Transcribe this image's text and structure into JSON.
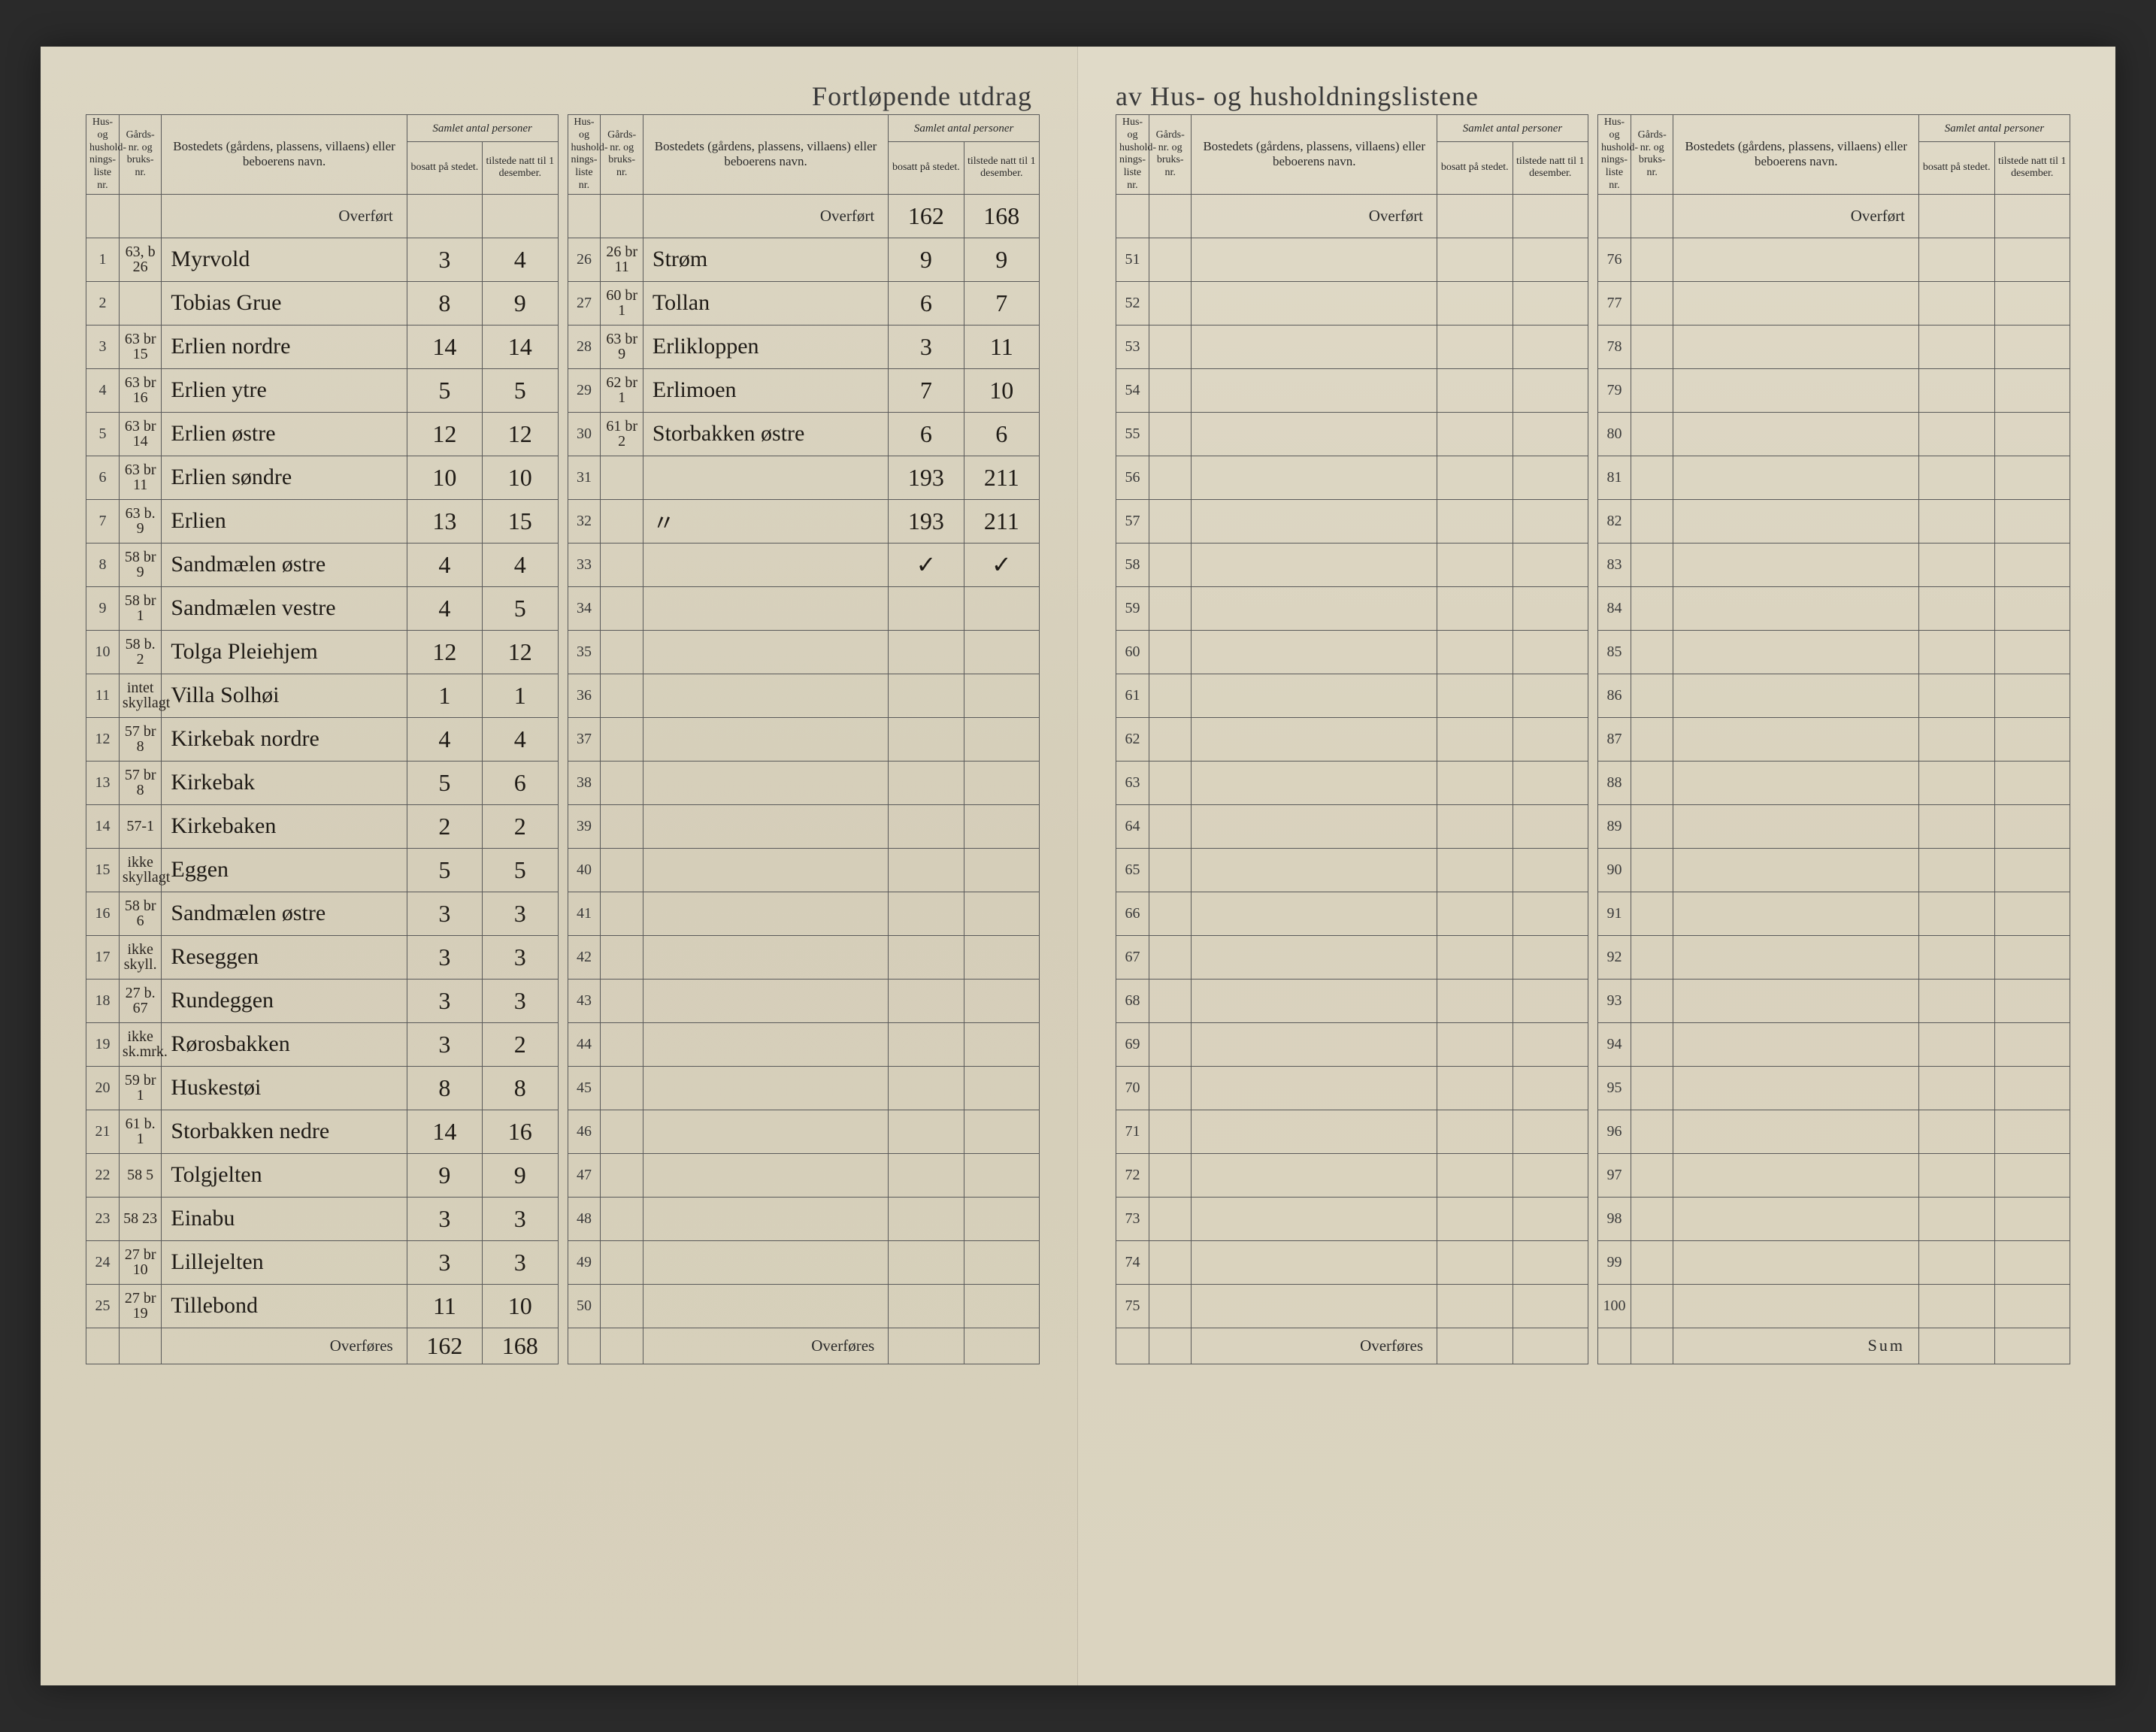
{
  "title_left": "Fortløpende utdrag",
  "title_right": "av Hus- og husholdningslistene",
  "headers": {
    "liste": "Hus- og hushold-nings-liste nr.",
    "gard": "Gårds-nr. og bruks-nr.",
    "navn": "Bostedets (gårdens, plassens, villaens) eller beboerens navn.",
    "group": "Samlet antal personer",
    "bosatt": "bosatt på stedet.",
    "tilstede": "tilstede natt til 1 desember."
  },
  "overfort": "Overført",
  "overfores": "Overføres",
  "sum": "Sum",
  "panels": {
    "p1": {
      "carry_in": {
        "b": "",
        "t": ""
      },
      "rows": [
        {
          "n": "1",
          "g": "63, b 26",
          "navn": "Myrvold",
          "b": "3",
          "t": "4"
        },
        {
          "n": "2",
          "g": "",
          "navn": "Tobias Grue",
          "b": "8",
          "t": "9"
        },
        {
          "n": "3",
          "g": "63 br 15",
          "navn": "Erlien nordre",
          "b": "14",
          "t": "14"
        },
        {
          "n": "4",
          "g": "63 br 16",
          "navn": "Erlien ytre",
          "b": "5",
          "t": "5"
        },
        {
          "n": "5",
          "g": "63 br 14",
          "navn": "Erlien østre",
          "b": "12",
          "t": "12"
        },
        {
          "n": "6",
          "g": "63 br 11",
          "navn": "Erlien søndre",
          "b": "10",
          "t": "10"
        },
        {
          "n": "7",
          "g": "63 b. 9",
          "navn": "Erlien",
          "b": "13",
          "t": "15"
        },
        {
          "n": "8",
          "g": "58 br 9",
          "navn": "Sandmælen østre",
          "b": "4",
          "t": "4"
        },
        {
          "n": "9",
          "g": "58 br 1",
          "navn": "Sandmælen vestre",
          "b": "4",
          "t": "5"
        },
        {
          "n": "10",
          "g": "58 b. 2",
          "navn": "Tolga Pleiehjem",
          "b": "12",
          "t": "12"
        },
        {
          "n": "11",
          "g": "intet skyllagt",
          "navn": "Villa Solhøi",
          "b": "1",
          "t": "1"
        },
        {
          "n": "12",
          "g": "57 br 8",
          "navn": "Kirkebak nordre",
          "b": "4",
          "t": "4"
        },
        {
          "n": "13",
          "g": "57 br 8",
          "navn": "Kirkebak",
          "b": "5",
          "t": "6"
        },
        {
          "n": "14",
          "g": "57-1",
          "navn": "Kirkebaken",
          "b": "2",
          "t": "2"
        },
        {
          "n": "15",
          "g": "ikke skyllagt",
          "navn": "Eggen",
          "b": "5",
          "t": "5"
        },
        {
          "n": "16",
          "g": "58 br 6",
          "navn": "Sandmælen østre",
          "b": "3",
          "t": "3"
        },
        {
          "n": "17",
          "g": "ikke skyll.",
          "navn": "Reseggen",
          "b": "3",
          "t": "3"
        },
        {
          "n": "18",
          "g": "27 b. 67",
          "navn": "Rundeggen",
          "b": "3",
          "t": "3"
        },
        {
          "n": "19",
          "g": "ikke sk.mrk.",
          "navn": "Rørosbakken",
          "b": "3",
          "t": "2"
        },
        {
          "n": "20",
          "g": "59 br 1",
          "navn": "Huskestøi",
          "b": "8",
          "t": "8"
        },
        {
          "n": "21",
          "g": "61 b. 1",
          "navn": "Storbakken nedre",
          "b": "14",
          "t": "16"
        },
        {
          "n": "22",
          "g": "58 5",
          "navn": "Tolgjelten",
          "b": "9",
          "t": "9"
        },
        {
          "n": "23",
          "g": "58 23",
          "navn": "Einabu",
          "b": "3",
          "t": "3"
        },
        {
          "n": "24",
          "g": "27 br 10",
          "navn": "Lillejelten",
          "b": "3",
          "t": "3"
        },
        {
          "n": "25",
          "g": "27 br 19",
          "navn": "Tillebond",
          "b": "11",
          "t": "10"
        }
      ],
      "carry_out": {
        "b": "162",
        "t": "168"
      }
    },
    "p2": {
      "carry_in": {
        "b": "162",
        "t": "168"
      },
      "rows": [
        {
          "n": "26",
          "g": "26 br 11",
          "navn": "Strøm",
          "b": "9",
          "t": "9"
        },
        {
          "n": "27",
          "g": "60 br 1",
          "navn": "Tollan",
          "b": "6",
          "t": "7"
        },
        {
          "n": "28",
          "g": "63 br 9",
          "navn": "Erlikloppen",
          "b": "3",
          "t": "11"
        },
        {
          "n": "29",
          "g": "62 br 1",
          "navn": "Erlimoen",
          "b": "7",
          "t": "10"
        },
        {
          "n": "30",
          "g": "61 br 2",
          "navn": "Storbakken østre",
          "b": "6",
          "t": "6"
        },
        {
          "n": "31",
          "g": "",
          "navn": "",
          "b": "193",
          "t": "211"
        },
        {
          "n": "32",
          "g": "",
          "navn": "〃",
          "b": "193",
          "t": "211"
        },
        {
          "n": "33",
          "g": "",
          "navn": "",
          "b": "✓",
          "t": "✓"
        },
        {
          "n": "34",
          "g": "",
          "navn": "",
          "b": "",
          "t": ""
        },
        {
          "n": "35",
          "g": "",
          "navn": "",
          "b": "",
          "t": ""
        },
        {
          "n": "36",
          "g": "",
          "navn": "",
          "b": "",
          "t": ""
        },
        {
          "n": "37",
          "g": "",
          "navn": "",
          "b": "",
          "t": ""
        },
        {
          "n": "38",
          "g": "",
          "navn": "",
          "b": "",
          "t": ""
        },
        {
          "n": "39",
          "g": "",
          "navn": "",
          "b": "",
          "t": ""
        },
        {
          "n": "40",
          "g": "",
          "navn": "",
          "b": "",
          "t": ""
        },
        {
          "n": "41",
          "g": "",
          "navn": "",
          "b": "",
          "t": ""
        },
        {
          "n": "42",
          "g": "",
          "navn": "",
          "b": "",
          "t": ""
        },
        {
          "n": "43",
          "g": "",
          "navn": "",
          "b": "",
          "t": ""
        },
        {
          "n": "44",
          "g": "",
          "navn": "",
          "b": "",
          "t": ""
        },
        {
          "n": "45",
          "g": "",
          "navn": "",
          "b": "",
          "t": ""
        },
        {
          "n": "46",
          "g": "",
          "navn": "",
          "b": "",
          "t": ""
        },
        {
          "n": "47",
          "g": "",
          "navn": "",
          "b": "",
          "t": ""
        },
        {
          "n": "48",
          "g": "",
          "navn": "",
          "b": "",
          "t": ""
        },
        {
          "n": "49",
          "g": "",
          "navn": "",
          "b": "",
          "t": ""
        },
        {
          "n": "50",
          "g": "",
          "navn": "",
          "b": "",
          "t": ""
        }
      ],
      "carry_out": {
        "b": "",
        "t": ""
      }
    },
    "p3": {
      "carry_in": {
        "b": "",
        "t": ""
      },
      "rows": [
        {
          "n": "51"
        },
        {
          "n": "52"
        },
        {
          "n": "53"
        },
        {
          "n": "54"
        },
        {
          "n": "55"
        },
        {
          "n": "56"
        },
        {
          "n": "57"
        },
        {
          "n": "58"
        },
        {
          "n": "59"
        },
        {
          "n": "60"
        },
        {
          "n": "61"
        },
        {
          "n": "62"
        },
        {
          "n": "63"
        },
        {
          "n": "64"
        },
        {
          "n": "65"
        },
        {
          "n": "66"
        },
        {
          "n": "67"
        },
        {
          "n": "68"
        },
        {
          "n": "69"
        },
        {
          "n": "70"
        },
        {
          "n": "71"
        },
        {
          "n": "72"
        },
        {
          "n": "73"
        },
        {
          "n": "74"
        },
        {
          "n": "75"
        }
      ],
      "carry_out": {
        "b": "",
        "t": ""
      }
    },
    "p4": {
      "carry_in": {
        "b": "",
        "t": ""
      },
      "rows": [
        {
          "n": "76"
        },
        {
          "n": "77"
        },
        {
          "n": "78"
        },
        {
          "n": "79"
        },
        {
          "n": "80"
        },
        {
          "n": "81"
        },
        {
          "n": "82"
        },
        {
          "n": "83"
        },
        {
          "n": "84"
        },
        {
          "n": "85"
        },
        {
          "n": "86"
        },
        {
          "n": "87"
        },
        {
          "n": "88"
        },
        {
          "n": "89"
        },
        {
          "n": "90"
        },
        {
          "n": "91"
        },
        {
          "n": "92"
        },
        {
          "n": "93"
        },
        {
          "n": "94"
        },
        {
          "n": "95"
        },
        {
          "n": "96"
        },
        {
          "n": "97"
        },
        {
          "n": "98"
        },
        {
          "n": "99"
        },
        {
          "n": "100"
        }
      ],
      "sum": {
        "b": "",
        "t": ""
      }
    }
  }
}
